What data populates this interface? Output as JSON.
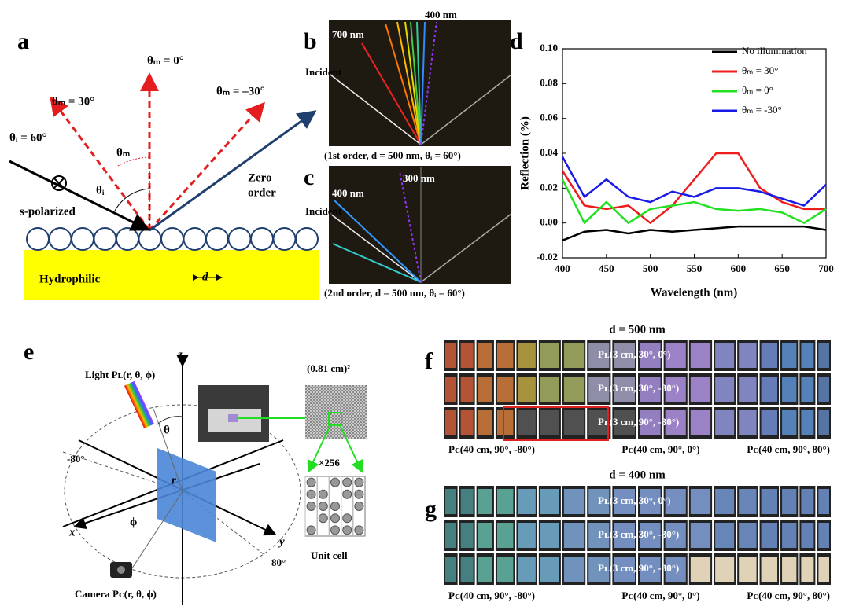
{
  "panels": {
    "a": {
      "label": "a",
      "theta_m0": "θₘ = 0°",
      "theta_m30": "θₘ = 30°",
      "theta_mneg30": "θₘ = –30°",
      "theta_i60": "θᵢ = 60°",
      "theta_m": "θₘ",
      "theta_i": "θᵢ",
      "polarization": "s-polarized",
      "zero_order_1": "Zero",
      "zero_order_2": "order",
      "substrate": "Hydrophilic",
      "period": "d"
    },
    "b": {
      "label": "b",
      "nm400": "400 nm",
      "nm700": "700 nm",
      "incident": "Incident",
      "caption": "(1st order, d = 500 nm, θᵢ = 60°)"
    },
    "c": {
      "label": "c",
      "nm300": "300 nm",
      "nm400": "400 nm",
      "incident": "Incident",
      "caption": "(2nd order, d = 500 nm, θᵢ = 60°)"
    },
    "d": {
      "label": "d"
    },
    "e": {
      "label": "e",
      "light": "Light Pʟ(r, θ, ϕ)",
      "z": "z",
      "theta": "θ",
      "r": "r",
      "neg80": "-80°",
      "phi": "ϕ",
      "x": "x",
      "y": "y",
      "pos80": "80°",
      "camera": "Camera Pᴄ(r, θ, ϕ)",
      "area": "(0.81 cm)²",
      "times": "×256",
      "unit_cell": "Unit cell"
    },
    "f": {
      "label": "f",
      "title": "d = 500 nm",
      "rows": [
        "Pʟ(3 cm, 30°, 0°)",
        "Pʟ(3 cm, 30°, -30°)",
        "Pʟ(3 cm, 90°, -30°)"
      ],
      "bottom": [
        "Pᴄ(40 cm, 90°, -80°)",
        "Pᴄ(40 cm, 90°, 0°)",
        "Pᴄ(40 cm, 90°, 80°)"
      ]
    },
    "g": {
      "label": "g",
      "title": "d = 400 nm",
      "rows": [
        "Pʟ(3 cm, 30°, 0°)",
        "Pʟ(3 cm, 30°, -30°)",
        "Pʟ(3 cm, 90°, -30°)"
      ],
      "bottom": [
        "Pᴄ(40 cm, 90°, -80°)",
        "Pᴄ(40 cm, 90°, 0°)",
        "Pᴄ(40 cm, 90°, 80°)"
      ]
    }
  },
  "chart_data": {
    "type": "line",
    "x_label": "Wavelength (nm)",
    "y_label": "Reflection (%)",
    "x": [
      400,
      425,
      450,
      475,
      500,
      525,
      550,
      575,
      600,
      625,
      650,
      675,
      700
    ],
    "series": [
      {
        "name": "No illumination",
        "color": "#000000",
        "values": [
          -0.01,
          -0.005,
          -0.004,
          -0.006,
          -0.004,
          -0.005,
          -0.004,
          -0.003,
          -0.002,
          -0.002,
          -0.002,
          -0.002,
          -0.004
        ]
      },
      {
        "name": "θₘ = 30°",
        "color": "#ee1c1c",
        "values": [
          0.03,
          0.01,
          0.008,
          0.01,
          0.0,
          0.01,
          0.025,
          0.04,
          0.04,
          0.02,
          0.012,
          0.008,
          0.008
        ]
      },
      {
        "name": "θₘ = 0°",
        "color": "#22e022",
        "values": [
          0.025,
          0.0,
          0.012,
          0.0,
          0.008,
          0.01,
          0.012,
          0.008,
          0.007,
          0.008,
          0.006,
          0.0,
          0.008
        ]
      },
      {
        "name": "θₘ = -30°",
        "color": "#1a1ae6",
        "values": [
          0.038,
          0.015,
          0.025,
          0.015,
          0.012,
          0.018,
          0.015,
          0.02,
          0.02,
          0.018,
          0.014,
          0.01,
          0.022
        ]
      }
    ],
    "xlim": [
      400,
      700
    ],
    "xticks": [
      400,
      450,
      500,
      550,
      600,
      650,
      700
    ],
    "ylim": [
      -0.02,
      0.1
    ],
    "yticks": [
      -0.02,
      {
        "value": 0,
        "label": "0.00"
      },
      0.02,
      0.04,
      0.06,
      0.08,
      {
        "value": 0.1,
        "label": "0.10"
      }
    ],
    "legend": "upper right"
  }
}
